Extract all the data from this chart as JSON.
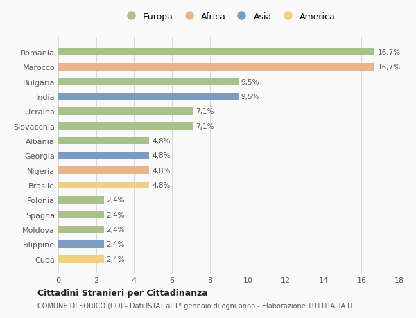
{
  "categories": [
    "Romania",
    "Marocco",
    "Bulgaria",
    "India",
    "Ucraina",
    "Slovacchia",
    "Albania",
    "Georgia",
    "Nigeria",
    "Brasile",
    "Polonia",
    "Spagna",
    "Moldova",
    "Filippine",
    "Cuba"
  ],
  "values": [
    16.7,
    16.7,
    9.5,
    9.5,
    7.1,
    7.1,
    4.8,
    4.8,
    4.8,
    4.8,
    2.4,
    2.4,
    2.4,
    2.4,
    2.4
  ],
  "labels": [
    "16,7%",
    "16,7%",
    "9,5%",
    "9,5%",
    "7,1%",
    "7,1%",
    "4,8%",
    "4,8%",
    "4,8%",
    "4,8%",
    "2,4%",
    "2,4%",
    "2,4%",
    "2,4%",
    "2,4%"
  ],
  "continents": [
    "Europa",
    "Africa",
    "Europa",
    "Asia",
    "Europa",
    "Europa",
    "Europa",
    "Asia",
    "Africa",
    "America",
    "Europa",
    "Europa",
    "Europa",
    "Asia",
    "America"
  ],
  "continent_colors": {
    "Europa": "#a8c08a",
    "Africa": "#e8b48a",
    "Asia": "#7a9cc0",
    "America": "#f0d080"
  },
  "legend_order": [
    "Europa",
    "Africa",
    "Asia",
    "America"
  ],
  "title": "Cittadini Stranieri per Cittadinanza",
  "subtitle": "COMUNE DI SORICO (CO) - Dati ISTAT al 1° gennaio di ogni anno - Elaborazione TUTTITALIA.IT",
  "xlim": [
    0,
    18
  ],
  "xticks": [
    0,
    2,
    4,
    6,
    8,
    10,
    12,
    14,
    16,
    18
  ],
  "background_color": "#f9f9f9",
  "grid_color": "#d8d8d8"
}
